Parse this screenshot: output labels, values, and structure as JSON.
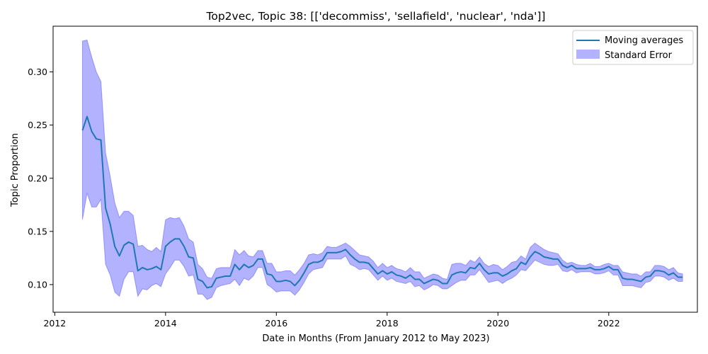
{
  "chart_data": {
    "type": "line",
    "title": "Top2vec, Topic 38: [['decommiss', 'sellafield', 'nuclear', 'nda']]",
    "xlabel": "Date in Months (From January 2012 to May 2023)",
    "ylabel": "Topic Proportion",
    "xlim": [
      2011.97,
      2023.6
    ],
    "ylim": [
      0.074,
      0.343
    ],
    "x_ticks": [
      2012,
      2014,
      2016,
      2018,
      2020,
      2022
    ],
    "x_tick_labels": [
      "2012",
      "2014",
      "2016",
      "2018",
      "2020",
      "2022"
    ],
    "y_ticks": [
      0.1,
      0.15,
      0.2,
      0.25,
      0.3
    ],
    "y_tick_labels": [
      "0.10",
      "0.15",
      "0.20",
      "0.25",
      "0.30"
    ],
    "grid": false,
    "legend_position": "top-right",
    "series": [
      {
        "name": "Moving averages",
        "color": "#1f77b4",
        "x": [
          2012.5,
          2012.583,
          2012.667,
          2012.75,
          2012.833,
          2012.917,
          2013.0,
          2013.083,
          2013.167,
          2013.25,
          2013.333,
          2013.417,
          2013.5,
          2013.583,
          2013.667,
          2013.75,
          2013.833,
          2013.917,
          2014.0,
          2014.083,
          2014.167,
          2014.25,
          2014.333,
          2014.417,
          2014.5,
          2014.583,
          2014.667,
          2014.75,
          2014.833,
          2014.917,
          2015.0,
          2015.083,
          2015.167,
          2015.25,
          2015.333,
          2015.417,
          2015.5,
          2015.583,
          2015.667,
          2015.75,
          2015.833,
          2015.917,
          2016.0,
          2016.083,
          2016.167,
          2016.25,
          2016.333,
          2016.417,
          2016.5,
          2016.583,
          2016.667,
          2016.75,
          2016.833,
          2016.917,
          2017.0,
          2017.083,
          2017.167,
          2017.25,
          2017.333,
          2017.417,
          2017.5,
          2017.583,
          2017.667,
          2017.75,
          2017.833,
          2017.917,
          2018.0,
          2018.083,
          2018.167,
          2018.25,
          2018.333,
          2018.417,
          2018.5,
          2018.583,
          2018.667,
          2018.75,
          2018.833,
          2018.917,
          2019.0,
          2019.083,
          2019.167,
          2019.25,
          2019.333,
          2019.417,
          2019.5,
          2019.583,
          2019.667,
          2019.75,
          2019.833,
          2019.917,
          2020.0,
          2020.083,
          2020.167,
          2020.25,
          2020.333,
          2020.417,
          2020.5,
          2020.583,
          2020.667,
          2020.75,
          2020.833,
          2020.917,
          2021.0,
          2021.083,
          2021.167,
          2021.25,
          2021.333,
          2021.417,
          2021.5,
          2021.583,
          2021.667,
          2021.75,
          2021.833,
          2021.917,
          2022.0,
          2022.083,
          2022.167,
          2022.25,
          2022.333,
          2022.417,
          2022.5,
          2022.583,
          2022.667,
          2022.75,
          2022.833,
          2022.917,
          2023.0,
          2023.083,
          2023.167,
          2023.25,
          2023.333
        ],
        "y": [
          0.245,
          0.258,
          0.244,
          0.237,
          0.236,
          0.172,
          0.157,
          0.136,
          0.127,
          0.137,
          0.14,
          0.138,
          0.113,
          0.116,
          0.114,
          0.115,
          0.117,
          0.114,
          0.136,
          0.14,
          0.143,
          0.143,
          0.136,
          0.126,
          0.125,
          0.105,
          0.103,
          0.097,
          0.098,
          0.106,
          0.107,
          0.108,
          0.108,
          0.119,
          0.114,
          0.119,
          0.116,
          0.118,
          0.124,
          0.124,
          0.11,
          0.109,
          0.103,
          0.103,
          0.104,
          0.103,
          0.099,
          0.104,
          0.111,
          0.119,
          0.121,
          0.121,
          0.123,
          0.13,
          0.13,
          0.13,
          0.131,
          0.133,
          0.128,
          0.124,
          0.121,
          0.121,
          0.12,
          0.115,
          0.11,
          0.113,
          0.11,
          0.112,
          0.109,
          0.108,
          0.106,
          0.109,
          0.105,
          0.105,
          0.101,
          0.103,
          0.105,
          0.104,
          0.101,
          0.101,
          0.109,
          0.111,
          0.112,
          0.111,
          0.116,
          0.115,
          0.12,
          0.114,
          0.11,
          0.111,
          0.111,
          0.108,
          0.11,
          0.113,
          0.115,
          0.121,
          0.119,
          0.126,
          0.131,
          0.129,
          0.126,
          0.125,
          0.124,
          0.124,
          0.118,
          0.116,
          0.118,
          0.115,
          0.115,
          0.115,
          0.116,
          0.114,
          0.114,
          0.115,
          0.117,
          0.114,
          0.114,
          0.106,
          0.105,
          0.105,
          0.104,
          0.103,
          0.107,
          0.108,
          0.113,
          0.113,
          0.112,
          0.109,
          0.111,
          0.107,
          0.107
        ]
      },
      {
        "name": "Standard Error",
        "color": "#0000ff",
        "opacity": 0.3,
        "x": [
          2012.5,
          2012.583,
          2012.667,
          2012.75,
          2012.833,
          2012.917,
          2013.0,
          2013.083,
          2013.167,
          2013.25,
          2013.333,
          2013.417,
          2013.5,
          2013.583,
          2013.667,
          2013.75,
          2013.833,
          2013.917,
          2014.0,
          2014.083,
          2014.167,
          2014.25,
          2014.333,
          2014.417,
          2014.5,
          2014.583,
          2014.667,
          2014.75,
          2014.833,
          2014.917,
          2015.0,
          2015.083,
          2015.167,
          2015.25,
          2015.333,
          2015.417,
          2015.5,
          2015.583,
          2015.667,
          2015.75,
          2015.833,
          2015.917,
          2016.0,
          2016.083,
          2016.167,
          2016.25,
          2016.333,
          2016.417,
          2016.5,
          2016.583,
          2016.667,
          2016.75,
          2016.833,
          2016.917,
          2017.0,
          2017.083,
          2017.167,
          2017.25,
          2017.333,
          2017.417,
          2017.5,
          2017.583,
          2017.667,
          2017.75,
          2017.833,
          2017.917,
          2018.0,
          2018.083,
          2018.167,
          2018.25,
          2018.333,
          2018.417,
          2018.5,
          2018.583,
          2018.667,
          2018.75,
          2018.833,
          2018.917,
          2019.0,
          2019.083,
          2019.167,
          2019.25,
          2019.333,
          2019.417,
          2019.5,
          2019.583,
          2019.667,
          2019.75,
          2019.833,
          2019.917,
          2020.0,
          2020.083,
          2020.167,
          2020.25,
          2020.333,
          2020.417,
          2020.5,
          2020.583,
          2020.667,
          2020.75,
          2020.833,
          2020.917,
          2021.0,
          2021.083,
          2021.167,
          2021.25,
          2021.333,
          2021.417,
          2021.5,
          2021.583,
          2021.667,
          2021.75,
          2021.833,
          2021.917,
          2022.0,
          2022.083,
          2022.167,
          2022.25,
          2022.333,
          2022.417,
          2022.5,
          2022.583,
          2022.667,
          2022.75,
          2022.833,
          2022.917,
          2023.0,
          2023.083,
          2023.167,
          2023.25,
          2023.333
        ],
        "upper": [
          0.329,
          0.33,
          0.314,
          0.3,
          0.291,
          0.224,
          0.202,
          0.177,
          0.163,
          0.169,
          0.169,
          0.165,
          0.136,
          0.137,
          0.133,
          0.131,
          0.135,
          0.131,
          0.161,
          0.163,
          0.162,
          0.163,
          0.155,
          0.143,
          0.14,
          0.119,
          0.115,
          0.107,
          0.106,
          0.115,
          0.116,
          0.116,
          0.116,
          0.133,
          0.128,
          0.132,
          0.127,
          0.126,
          0.132,
          0.132,
          0.12,
          0.12,
          0.112,
          0.112,
          0.113,
          0.113,
          0.109,
          0.114,
          0.12,
          0.128,
          0.129,
          0.128,
          0.13,
          0.136,
          0.135,
          0.135,
          0.137,
          0.139,
          0.136,
          0.132,
          0.128,
          0.127,
          0.126,
          0.122,
          0.116,
          0.12,
          0.116,
          0.118,
          0.115,
          0.114,
          0.112,
          0.116,
          0.112,
          0.112,
          0.106,
          0.108,
          0.11,
          0.109,
          0.106,
          0.105,
          0.119,
          0.12,
          0.12,
          0.118,
          0.123,
          0.121,
          0.126,
          0.12,
          0.117,
          0.119,
          0.118,
          0.114,
          0.117,
          0.121,
          0.122,
          0.127,
          0.124,
          0.135,
          0.139,
          0.136,
          0.133,
          0.131,
          0.13,
          0.129,
          0.123,
          0.12,
          0.121,
          0.119,
          0.118,
          0.118,
          0.12,
          0.117,
          0.117,
          0.119,
          0.12,
          0.118,
          0.118,
          0.112,
          0.111,
          0.11,
          0.11,
          0.108,
          0.112,
          0.112,
          0.118,
          0.118,
          0.117,
          0.114,
          0.116,
          0.111,
          0.11
        ],
        "lower": [
          0.161,
          0.186,
          0.173,
          0.173,
          0.18,
          0.119,
          0.109,
          0.093,
          0.089,
          0.105,
          0.112,
          0.112,
          0.089,
          0.096,
          0.095,
          0.099,
          0.101,
          0.098,
          0.11,
          0.116,
          0.123,
          0.123,
          0.117,
          0.108,
          0.109,
          0.091,
          0.091,
          0.086,
          0.088,
          0.097,
          0.099,
          0.1,
          0.101,
          0.105,
          0.099,
          0.106,
          0.104,
          0.108,
          0.116,
          0.116,
          0.1,
          0.097,
          0.093,
          0.094,
          0.094,
          0.094,
          0.09,
          0.095,
          0.102,
          0.11,
          0.114,
          0.115,
          0.116,
          0.124,
          0.124,
          0.124,
          0.124,
          0.127,
          0.119,
          0.117,
          0.114,
          0.115,
          0.114,
          0.109,
          0.104,
          0.108,
          0.104,
          0.106,
          0.103,
          0.102,
          0.101,
          0.103,
          0.098,
          0.099,
          0.095,
          0.097,
          0.1,
          0.099,
          0.096,
          0.096,
          0.099,
          0.102,
          0.104,
          0.104,
          0.109,
          0.109,
          0.114,
          0.108,
          0.102,
          0.103,
          0.104,
          0.101,
          0.104,
          0.106,
          0.109,
          0.114,
          0.113,
          0.118,
          0.123,
          0.121,
          0.119,
          0.118,
          0.118,
          0.119,
          0.113,
          0.112,
          0.114,
          0.111,
          0.112,
          0.112,
          0.112,
          0.11,
          0.11,
          0.111,
          0.113,
          0.109,
          0.109,
          0.099,
          0.099,
          0.099,
          0.098,
          0.097,
          0.102,
          0.103,
          0.108,
          0.108,
          0.107,
          0.104,
          0.106,
          0.103,
          0.103
        ]
      }
    ]
  }
}
